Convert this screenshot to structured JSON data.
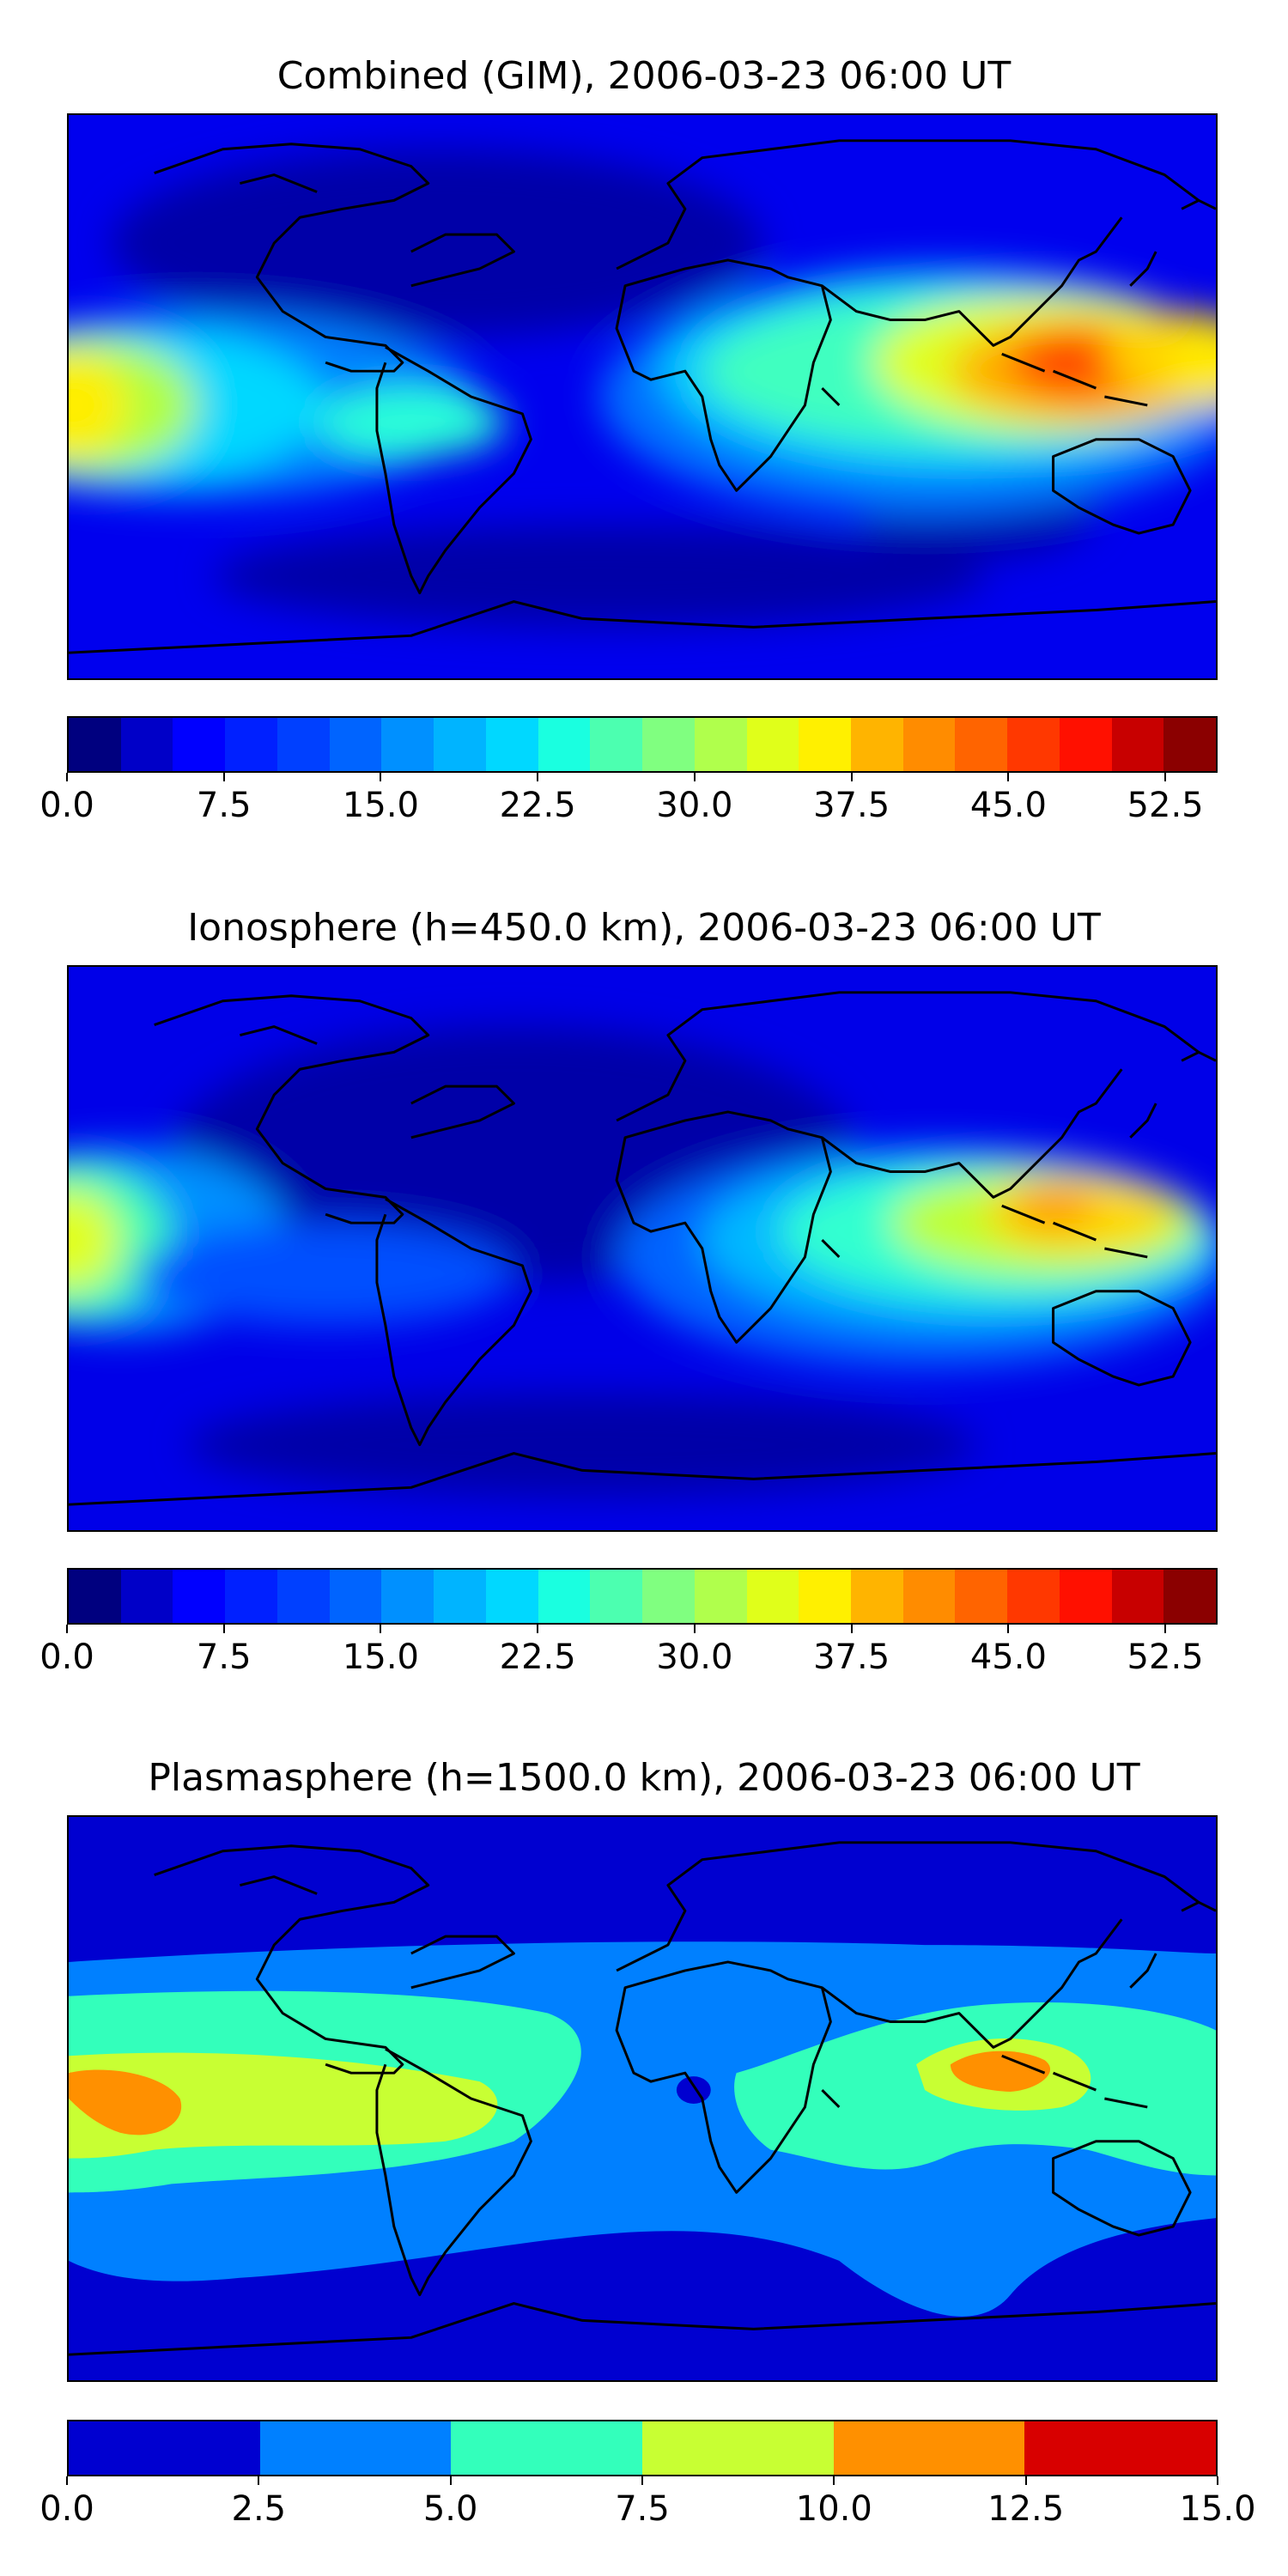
{
  "panels": [
    {
      "title": "Combined (GIM), 2006-03-23 06:00 UT",
      "map_kind": "combined",
      "colorbar": {
        "colors": [
          "#00007f",
          "#0000c8",
          "#0000ff",
          "#0020ff",
          "#0040ff",
          "#0064ff",
          "#0090ff",
          "#00b4ff",
          "#00d8ff",
          "#1affe0",
          "#4cffb0",
          "#80ff80",
          "#b0ff4c",
          "#e0ff1a",
          "#fff000",
          "#ffb400",
          "#ff8c00",
          "#ff6400",
          "#ff3800",
          "#ff1000",
          "#c80000",
          "#8b0000"
        ],
        "min": 0.0,
        "max": 55.0,
        "tick_values": [
          0.0,
          7.5,
          15.0,
          22.5,
          30.0,
          37.5,
          45.0,
          52.5
        ],
        "tick_labels": [
          "0.0",
          "7.5",
          "15.0",
          "22.5",
          "30.0",
          "37.5",
          "45.0",
          "52.5"
        ]
      }
    },
    {
      "title": "Ionosphere  (h=450.0 km), 2006-03-23 06:00 UT",
      "map_kind": "ionosphere",
      "colorbar": {
        "colors": [
          "#00007f",
          "#0000c8",
          "#0000ff",
          "#0020ff",
          "#0040ff",
          "#0064ff",
          "#0090ff",
          "#00b4ff",
          "#00d8ff",
          "#1affe0",
          "#4cffb0",
          "#80ff80",
          "#b0ff4c",
          "#e0ff1a",
          "#fff000",
          "#ffb400",
          "#ff8c00",
          "#ff6400",
          "#ff3800",
          "#ff1000",
          "#c80000",
          "#8b0000"
        ],
        "min": 0.0,
        "max": 55.0,
        "tick_values": [
          0.0,
          7.5,
          15.0,
          22.5,
          30.0,
          37.5,
          45.0,
          52.5
        ],
        "tick_labels": [
          "0.0",
          "7.5",
          "15.0",
          "22.5",
          "30.0",
          "37.5",
          "45.0",
          "52.5"
        ]
      }
    },
    {
      "title": "Plasmasphere (h=1500.0 km), 2006-03-23 06:00 UT",
      "map_kind": "plasmasphere",
      "colorbar": {
        "colors": [
          "#0000d0",
          "#0080ff",
          "#33ffbb",
          "#c8ff33",
          "#ff9000",
          "#d80000"
        ],
        "min": 0.0,
        "max": 15.0,
        "tick_values": [
          0.0,
          2.5,
          5.0,
          7.5,
          10.0,
          12.5,
          15.0
        ],
        "tick_labels": [
          "0.0",
          "2.5",
          "5.0",
          "7.5",
          "10.0",
          "12.5",
          "15.0"
        ]
      }
    }
  ]
}
